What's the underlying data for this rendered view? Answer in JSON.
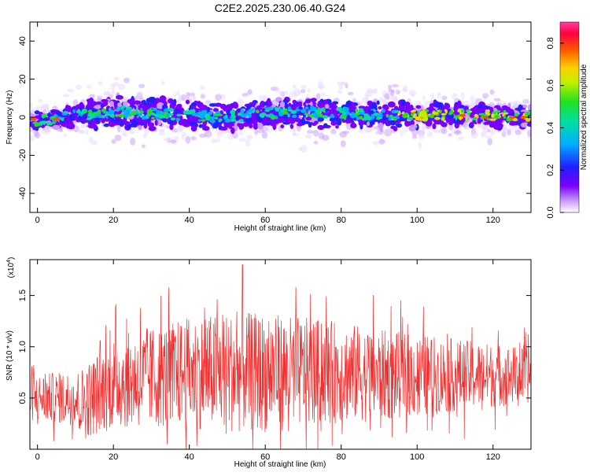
{
  "chart_data": [
    {
      "type": "heatmap",
      "title": "C2E2.2025.230.06.40.G24",
      "xlabel": "Height of straight line (km)",
      "ylabel": "Frequency (Hz)",
      "xlim": [
        -2,
        130
      ],
      "ylim": [
        -50,
        50
      ],
      "xticks": [
        0,
        20,
        40,
        60,
        80,
        100,
        120
      ],
      "yticks": [
        -40,
        -20,
        0,
        20,
        40
      ],
      "colorbar": {
        "label": "Normalized spectral amplitude",
        "range": [
          0.0,
          0.9
        ],
        "ticks": [
          "0.0",
          "0.2",
          "0.4",
          "0.6",
          "0.8"
        ]
      },
      "ridge": {
        "description_points_x": [
          -2,
          5,
          10,
          20,
          30,
          40,
          50,
          60,
          70,
          80,
          90,
          100,
          110,
          120,
          130
        ],
        "center_freq": [
          -2,
          -1,
          1,
          3,
          2,
          1,
          0,
          2,
          3,
          2,
          1,
          1,
          1,
          1,
          0
        ],
        "spread_freq": [
          4,
          4,
          6,
          8,
          7,
          6,
          6,
          6,
          7,
          6,
          6,
          6,
          5,
          5,
          5
        ]
      },
      "grid": false
    },
    {
      "type": "line",
      "xlabel": "Height of straight line (km)",
      "ylabel": "SNR (10 * v/v)",
      "scale_label": "(x10",
      "scale_exp": "4",
      "scale_close": ")",
      "xlim": [
        -2,
        130
      ],
      "ylim": [
        0,
        1.85
      ],
      "xticks": [
        0,
        20,
        40,
        60,
        80,
        100,
        120
      ],
      "yticks": [
        "0.5",
        "1.0",
        "1.5"
      ],
      "line_color": "#f03030",
      "envelope": {
        "x": [
          -2,
          10,
          12,
          20,
          30,
          40,
          50,
          60,
          70,
          80,
          90,
          100,
          110,
          120,
          130
        ],
        "mean": [
          0.5,
          0.5,
          0.45,
          0.65,
          0.7,
          0.75,
          0.75,
          0.75,
          0.75,
          0.75,
          0.72,
          0.72,
          0.72,
          0.72,
          0.72
        ],
        "amp": [
          0.25,
          0.3,
          0.4,
          0.5,
          0.55,
          0.6,
          0.65,
          0.65,
          0.6,
          0.55,
          0.5,
          0.45,
          0.4,
          0.35,
          0.3
        ],
        "peak": 1.8
      },
      "grid": false
    }
  ]
}
